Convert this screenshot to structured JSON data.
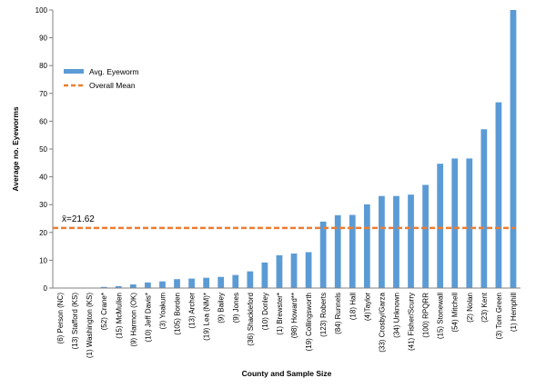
{
  "chart_data": {
    "type": "bar",
    "xlabel": "County and Sample Size",
    "ylabel": "Average no. Eyeworms",
    "ylim": [
      0,
      100
    ],
    "yticks": [
      0,
      10,
      20,
      30,
      40,
      50,
      60,
      70,
      80,
      90,
      100
    ],
    "grid": false,
    "legend_position": "top-left",
    "categories": [
      "(6) Person (NC)",
      "(13) Stafford (KS)",
      "(1) Washington (KS)",
      "(52) Crane*",
      "(15) McMullen",
      "(9) Harmon (OK)",
      "(10) Jeff Davis*",
      "(3) Yoakum",
      "(105) Borden",
      "(13) Archer",
      "(19) Lea (NM)*",
      "(9) Bailey",
      "(9) Jones",
      "(36) Shackleford",
      "(10) Donley",
      "(1) Brewster*",
      "(98) Howard**",
      "(19) Collingsworth",
      "(123) Roberts",
      "(84) Runnels",
      "(18) Hall",
      "(4)Taylor",
      "(33) Crosby/Garza",
      "(34) Unknown",
      "(41) Fisher/Scurry",
      "(100) RPQRR",
      "(15) Stonewall",
      "(54) Mitchell",
      "(2) Nolan",
      "(23) Kent",
      "(3) Tom Green",
      "(1) Hemphill"
    ],
    "series": [
      {
        "name": "Avg. Eyeworm",
        "color": "#5B9BD5",
        "values": [
          0,
          0,
          0,
          0.4,
          0.7,
          1.3,
          2,
          2.4,
          3.2,
          3.4,
          3.7,
          4,
          4.7,
          6,
          9.2,
          11.8,
          12.4,
          12.9,
          23.9,
          26.2,
          26.3,
          30.1,
          33.1,
          33.1,
          33.6,
          37.1,
          44.7,
          46.6,
          46.6,
          57.1,
          66.8,
          100
        ]
      }
    ],
    "reference_line": {
      "name": "Overall Mean",
      "value": 21.62,
      "color": "#ED7D31",
      "label": "x̄=21.62"
    }
  }
}
